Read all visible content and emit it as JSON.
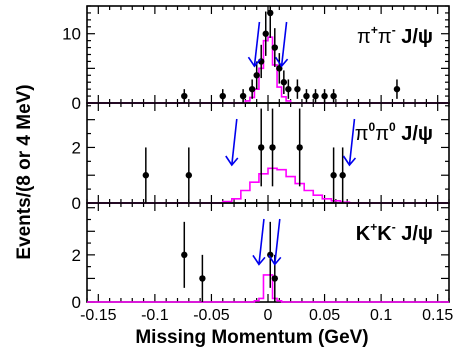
{
  "chart_data": {
    "type": "scatter",
    "ylabel": "Events/(8 or 4 MeV)",
    "xlabel": "Missing Momentum (GeV)",
    "xlim": [
      -0.16,
      0.16
    ],
    "x_ticks": [
      -0.15,
      -0.1,
      -0.05,
      0,
      0.05,
      0.1,
      0.15
    ],
    "x_tick_labels": [
      "-0.15",
      "-0.1",
      "-0.05",
      "0",
      "0.05",
      "0.1",
      "0.15"
    ],
    "colors": {
      "data": "#000000",
      "mc": "#ff00ff",
      "cut_arrow": "#0000ee"
    },
    "panels": [
      {
        "channel_label": {
          "parts": [
            "π",
            "+",
            "π",
            "-",
            " J/ψ"
          ]
        },
        "ylim": [
          0,
          14
        ],
        "y_ticks": [
          0,
          10
        ],
        "points": [
          {
            "x": -0.074,
            "y": 1,
            "err": 1
          },
          {
            "x": -0.04,
            "y": 1,
            "err": 1
          },
          {
            "x": -0.022,
            "y": 1,
            "err": 1
          },
          {
            "x": -0.014,
            "y": 2,
            "err": 1.4
          },
          {
            "x": -0.01,
            "y": 4,
            "err": 2
          },
          {
            "x": -0.006,
            "y": 6,
            "err": 2.4
          },
          {
            "x": -0.002,
            "y": 10,
            "err": 3.2
          },
          {
            "x": 0.002,
            "y": 13,
            "err": 3.6
          },
          {
            "x": 0.006,
            "y": 8,
            "err": 2.8
          },
          {
            "x": 0.01,
            "y": 5,
            "err": 2.2
          },
          {
            "x": 0.014,
            "y": 3,
            "err": 1.7
          },
          {
            "x": 0.018,
            "y": 2,
            "err": 1.4
          },
          {
            "x": 0.026,
            "y": 2,
            "err": 1.4
          },
          {
            "x": 0.034,
            "y": 1,
            "err": 1
          },
          {
            "x": 0.042,
            "y": 1,
            "err": 1
          },
          {
            "x": 0.05,
            "y": 1,
            "err": 1
          },
          {
            "x": 0.058,
            "y": 1,
            "err": 1
          },
          {
            "x": 0.114,
            "y": 2,
            "err": 1.4
          }
        ],
        "mc_histogram": {
          "edges": [
            -0.02,
            -0.016,
            -0.012,
            -0.008,
            -0.004,
            0.0,
            0.004,
            0.008,
            0.012,
            0.016,
            0.02
          ],
          "values": [
            0.3,
            0.8,
            2.0,
            5.0,
            9.0,
            9.5,
            5.5,
            2.3,
            0.9,
            0.3
          ]
        },
        "cut_arrows": [
          -0.012,
          0.012
        ]
      },
      {
        "channel_label": {
          "parts": [
            "π",
            "0",
            "π",
            "0",
            " J/ψ"
          ]
        },
        "ylim": [
          0,
          3.6
        ],
        "y_ticks": [
          0,
          2
        ],
        "points": [
          {
            "x": -0.108,
            "y": 1,
            "err": 1
          },
          {
            "x": -0.07,
            "y": 1,
            "err": 1
          },
          {
            "x": -0.006,
            "y": 2,
            "err": 1.4
          },
          {
            "x": 0.004,
            "y": 2,
            "err": 1.4
          },
          {
            "x": 0.028,
            "y": 2,
            "err": 1.4
          },
          {
            "x": 0.058,
            "y": 1,
            "err": 1
          },
          {
            "x": 0.066,
            "y": 1,
            "err": 1
          }
        ],
        "mc_histogram": {
          "edges": [
            -0.04,
            -0.032,
            -0.024,
            -0.016,
            -0.008,
            0.0,
            0.008,
            0.016,
            0.024,
            0.032,
            0.04,
            0.048,
            0.056,
            0.064,
            0.072
          ],
          "values": [
            0.05,
            0.15,
            0.45,
            0.75,
            1.05,
            1.25,
            1.2,
            0.95,
            0.7,
            0.45,
            0.28,
            0.15,
            0.08,
            0.03
          ]
        },
        "cut_arrows": [
          -0.032,
          0.072
        ]
      },
      {
        "channel_label": {
          "parts": [
            "K",
            "+",
            "K",
            "-",
            " J/ψ"
          ]
        },
        "ylim": [
          0,
          4.2
        ],
        "y_ticks": [
          0,
          2
        ],
        "points": [
          {
            "x": -0.074,
            "y": 2,
            "err": 1.4
          },
          {
            "x": -0.058,
            "y": 1,
            "err": 1
          },
          {
            "x": 0.002,
            "y": 2,
            "err": 1.4
          },
          {
            "x": 0.006,
            "y": 1,
            "err": 1
          }
        ],
        "mc_histogram": {
          "edges": [
            -0.012,
            -0.008,
            -0.004,
            0.0,
            0.004,
            0.008,
            0.012
          ],
          "values": [
            0.05,
            0.15,
            1.15,
            1.15,
            0.15,
            0.05
          ]
        },
        "cut_arrows": [
          -0.008,
          0.006
        ]
      }
    ]
  }
}
